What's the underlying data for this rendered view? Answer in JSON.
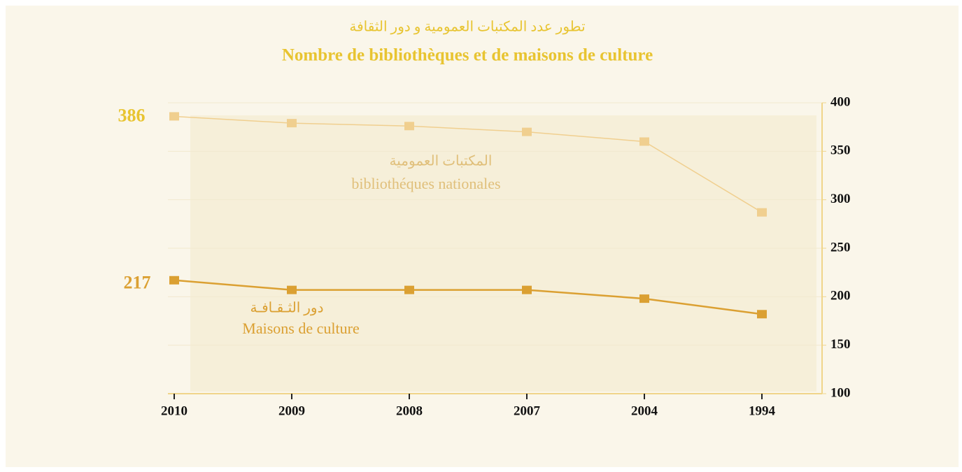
{
  "chart_data": {
    "type": "line",
    "title_ar": "تطور عدد المكتبات العمومية و دور الثقافة",
    "title": "Nombre de bibliothèques et de maisons de culture",
    "categories": [
      "2010",
      "2009",
      "2008",
      "2007",
      "2004",
      "1994"
    ],
    "series": [
      {
        "name": "bibliothéques nationales",
        "name_ar": "المكتبات العمومية",
        "color": "#f0cf8f",
        "values": [
          386,
          379,
          376,
          370,
          360,
          287
        ]
      },
      {
        "name": "Maisons de culture",
        "name_ar": "دور الثـقـافـة",
        "color": "#dba032",
        "values": [
          217,
          207,
          207,
          207,
          198,
          182
        ]
      }
    ],
    "ylim": [
      100,
      400
    ],
    "yticks": [
      100,
      150,
      200,
      250,
      300,
      350,
      400
    ],
    "grid": true
  }
}
